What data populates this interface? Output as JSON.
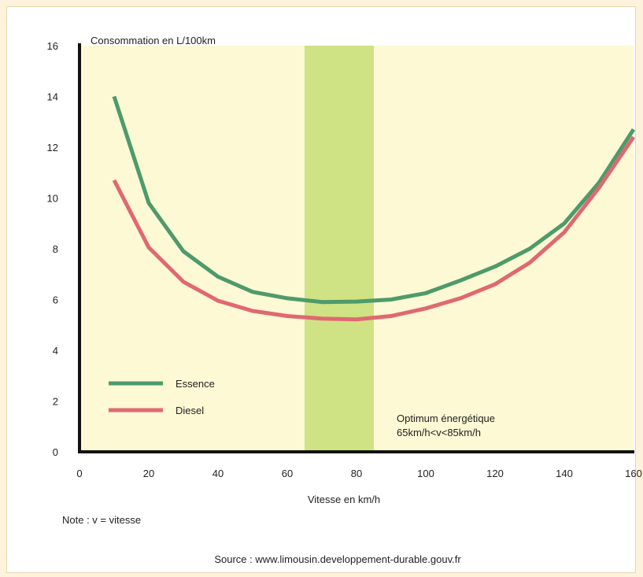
{
  "colors": {
    "plot_bg": "#fcf9d4",
    "optimum_band": "#cfe284",
    "essence": "#4e9a6a",
    "diesel": "#e06870",
    "axis": "#111111"
  },
  "chart_data": {
    "type": "line",
    "title": "",
    "ylabel": "Consommation en L/100km",
    "xlabel": "Vitesse en km/h",
    "xlim": [
      0,
      160
    ],
    "ylim": [
      0,
      16
    ],
    "x_ticks": [
      0,
      20,
      40,
      60,
      80,
      100,
      120,
      140,
      160
    ],
    "y_ticks": [
      0,
      2,
      4,
      6,
      8,
      10,
      12,
      14,
      16
    ],
    "grid": false,
    "legend_position": "bottom-left",
    "series": [
      {
        "name": "Essence",
        "color": "#4e9a6a",
        "x": [
          10,
          20,
          30,
          40,
          50,
          60,
          70,
          80,
          90,
          100,
          110,
          120,
          130,
          140,
          150,
          160
        ],
        "y": [
          14.0,
          9.8,
          7.9,
          6.9,
          6.3,
          6.05,
          5.9,
          5.92,
          6.0,
          6.25,
          6.75,
          7.3,
          8.0,
          9.0,
          10.6,
          12.7
        ]
      },
      {
        "name": "Diesel",
        "color": "#e06870",
        "x": [
          10,
          20,
          30,
          40,
          50,
          60,
          70,
          80,
          90,
          100,
          110,
          120,
          130,
          140,
          150,
          160
        ],
        "y": [
          10.7,
          8.05,
          6.7,
          5.95,
          5.55,
          5.35,
          5.25,
          5.22,
          5.35,
          5.65,
          6.05,
          6.6,
          7.45,
          8.65,
          10.4,
          12.4
        ]
      }
    ],
    "annotations": {
      "optimum_band": {
        "x_start": 65,
        "x_end": 85
      },
      "optimum_line1": "Optimum énergétique",
      "optimum_line2": "65km/h<v<85km/h"
    },
    "note": "Note : v = vitesse",
    "source": "Source : www.limousin.developpement-durable.gouv.fr"
  }
}
